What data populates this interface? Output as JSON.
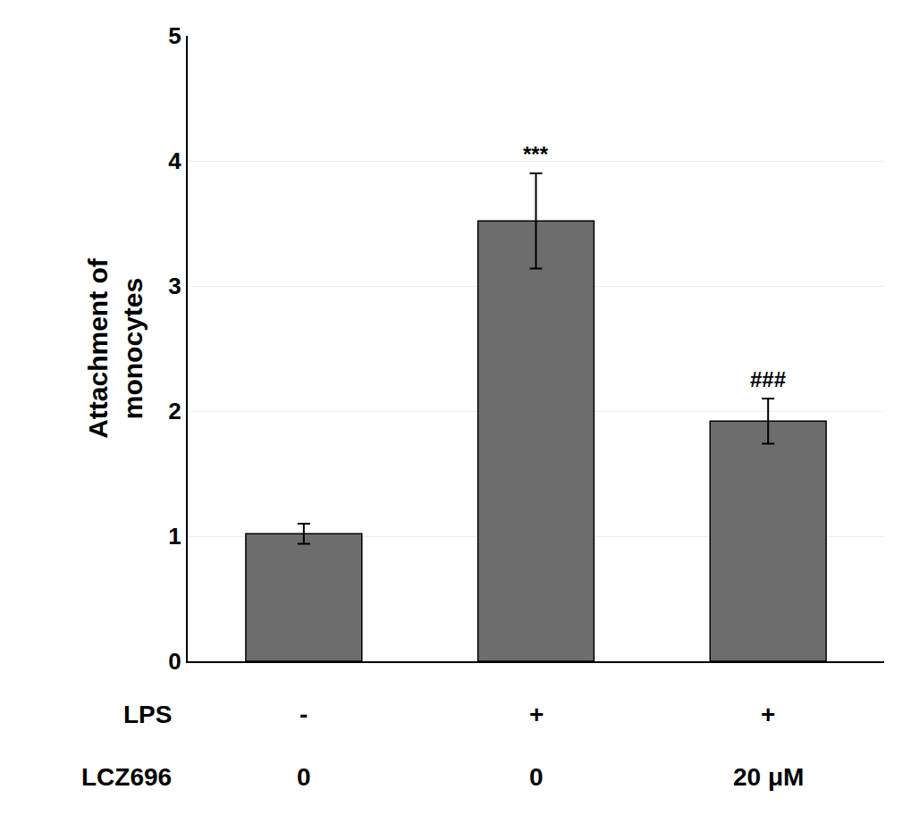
{
  "chart_data": {
    "type": "bar",
    "categories": [
      null,
      null,
      null
    ],
    "values": [
      1.02,
      3.52,
      1.92
    ],
    "errors": [
      0.08,
      0.38,
      0.18
    ],
    "color": "#6d6d6d",
    "ylabel": [
      "Attachment of",
      "monocytes"
    ],
    "annotations": [
      null,
      "***",
      "###"
    ],
    "table": [
      {
        "label": "LPS",
        "values": [
          "-",
          "+",
          "+"
        ]
      },
      {
        "label": "LCZ696",
        "values": [
          "0",
          "0",
          "20 μM"
        ]
      }
    ],
    "ylim": [
      0,
      5
    ],
    "yticks": [
      0,
      1,
      2,
      3,
      4,
      5
    ],
    "grid": true
  }
}
